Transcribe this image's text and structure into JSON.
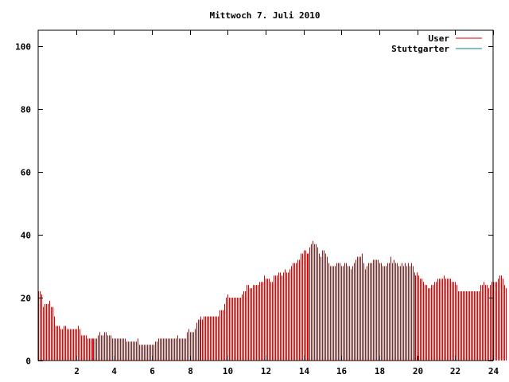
{
  "chart_data": {
    "type": "bar",
    "title": "Mittwoch 7. Juli 2010",
    "xlabel": "",
    "ylabel": "",
    "xlim": [
      0,
      24
    ],
    "ylim": [
      0,
      105
    ],
    "x_ticks": [
      2,
      4,
      6,
      8,
      10,
      12,
      14,
      16,
      18,
      20,
      22,
      24
    ],
    "x_tick_labels": [
      "2",
      "4",
      "6",
      "8",
      "10",
      "12",
      "14",
      "16",
      "18",
      "20",
      "22",
      "24"
    ],
    "y_ticks": [
      0,
      20,
      40,
      60,
      80,
      100
    ],
    "y_tick_labels": [
      "0",
      "20",
      "40",
      "60",
      "80",
      "100"
    ],
    "grid": false,
    "legend_position": "top-right",
    "series": [
      {
        "name": "User",
        "color": "#e00000",
        "style": "impulses",
        "step": 0.0833,
        "values": [
          22,
          22,
          21,
          17,
          18,
          18,
          18,
          19,
          17,
          17,
          14,
          11,
          11,
          11,
          10,
          10,
          11,
          11,
          10,
          10,
          10,
          10,
          10,
          10,
          10,
          11,
          10,
          8,
          8,
          8,
          8,
          7,
          7,
          7,
          7,
          7,
          7,
          7,
          8,
          9,
          8,
          8,
          9,
          9,
          8,
          8,
          8,
          7,
          7,
          7,
          7,
          7,
          7,
          7,
          7,
          7,
          6,
          6,
          6,
          6,
          6,
          6,
          6,
          7,
          5,
          5,
          5,
          5,
          5,
          5,
          5,
          5,
          5,
          5,
          6,
          6,
          7,
          7,
          7,
          7,
          7,
          7,
          7,
          7,
          7,
          7,
          7,
          7,
          8,
          7,
          7,
          7,
          7,
          7,
          9,
          10,
          9,
          9,
          9,
          10,
          12,
          13,
          13,
          14,
          13,
          14,
          14,
          14,
          14,
          14,
          14,
          14,
          14,
          14,
          14,
          16,
          16,
          16,
          18,
          20,
          21,
          20,
          20,
          20,
          20,
          20,
          20,
          20,
          20,
          21,
          22,
          22,
          24,
          24,
          23,
          23,
          24,
          24,
          24,
          24,
          25,
          25,
          25,
          27,
          26,
          26,
          26,
          25,
          25,
          27,
          27,
          27,
          28,
          28,
          27,
          28,
          29,
          28,
          28,
          29,
          30,
          31,
          31,
          31,
          32,
          32,
          34,
          34,
          35,
          35,
          34,
          34,
          36,
          37,
          38,
          37,
          37,
          36,
          34,
          33,
          35,
          35,
          34,
          33,
          31,
          30,
          30,
          30,
          30,
          31,
          31,
          31,
          30,
          30,
          31,
          31,
          30,
          30,
          29,
          30,
          31,
          32,
          33,
          33,
          33,
          34,
          31,
          29,
          30,
          31,
          31,
          31,
          32,
          32,
          32,
          32,
          31,
          31,
          30,
          30,
          30,
          31,
          31,
          33,
          31,
          32,
          31,
          31,
          30,
          30,
          31,
          30,
          31,
          30,
          31,
          30,
          31,
          30,
          28,
          27,
          28,
          27,
          26,
          26,
          25,
          24,
          24,
          23,
          23,
          24,
          24,
          25,
          25,
          26,
          26,
          26,
          26,
          27,
          26,
          26,
          26,
          26,
          25,
          25,
          25,
          24,
          22,
          22,
          22,
          22,
          22,
          22,
          22,
          22,
          22,
          22,
          22,
          22,
          22,
          22,
          24,
          24,
          25,
          24,
          24,
          23,
          24,
          25,
          25,
          25,
          25,
          26,
          27,
          27,
          26,
          24,
          23
        ]
      },
      {
        "name": "Stuttgarter",
        "color": "#008080",
        "style": "impulses",
        "values": []
      }
    ]
  }
}
